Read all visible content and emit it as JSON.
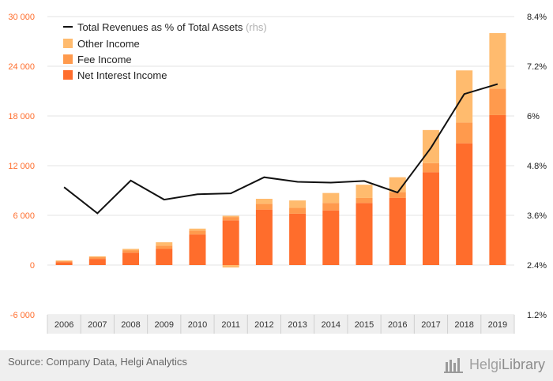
{
  "chart_data": {
    "type": "bar",
    "stacked": true,
    "categories": [
      "2006",
      "2007",
      "2008",
      "2009",
      "2010",
      "2011",
      "2012",
      "2013",
      "2014",
      "2015",
      "2016",
      "2017",
      "2018",
      "2019"
    ],
    "series": [
      {
        "name": "Net Interest Income",
        "color": "#ff6d2c",
        "values": [
          350,
          750,
          1500,
          1950,
          3700,
          5400,
          6700,
          6200,
          6600,
          7500,
          8100,
          11200,
          14700,
          18100
        ]
      },
      {
        "name": "Fee Income",
        "color": "#ff9a4d",
        "values": [
          120,
          200,
          300,
          400,
          450,
          400,
          700,
          700,
          900,
          600,
          700,
          1100,
          2500,
          3200
        ]
      },
      {
        "name": "Other Income",
        "color": "#ffbb6e",
        "values": [
          80,
          100,
          150,
          400,
          250,
          150,
          600,
          900,
          1200,
          1600,
          1800,
          4000,
          6300,
          6700
        ]
      }
    ],
    "negative_values": {
      "2011": -300
    },
    "line": {
      "name": "Total Revenues as % of Total Assets",
      "suffix": "(rhs)",
      "axis": "right",
      "values": [
        4.28,
        3.65,
        4.44,
        3.98,
        4.11,
        4.13,
        4.52,
        4.41,
        4.39,
        4.43,
        4.15,
        5.23,
        6.53,
        6.77
      ]
    },
    "y_left": {
      "min": -6000,
      "max": 30000,
      "ticks": [
        "-6 000",
        "0",
        "6 000",
        "12 000",
        "18 000",
        "24 000",
        "30 000"
      ],
      "tick_values": [
        -6000,
        0,
        6000,
        12000,
        18000,
        24000,
        30000
      ],
      "color": "#ff6d2c"
    },
    "y_right": {
      "min": 1.2,
      "max": 8.4,
      "ticks": [
        "1.2%",
        "2.4%",
        "3.6%",
        "4.8%",
        "6%",
        "7.2%",
        "8.4%"
      ],
      "tick_values": [
        1.2,
        2.4,
        3.6,
        4.8,
        6.0,
        7.2,
        8.4
      ]
    },
    "grid": true,
    "legend_position": "top-left"
  },
  "footer": {
    "source": "Source: Company Data, Helgi Analytics",
    "brand_first": "Helgi",
    "brand_second": "Library"
  },
  "icons": [
    "helgi-library-logo-icon"
  ]
}
